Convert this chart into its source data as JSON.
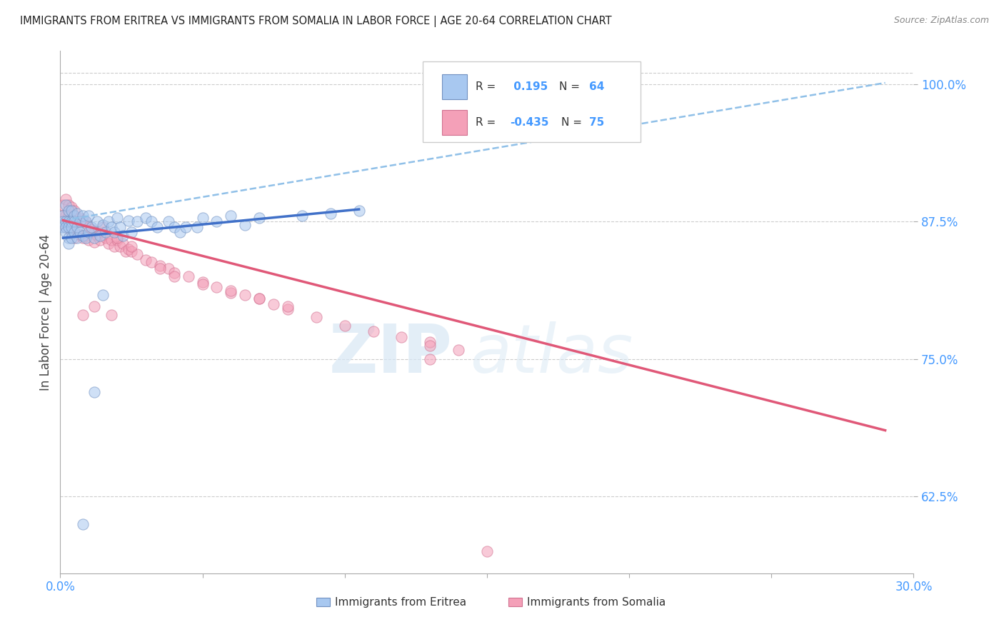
{
  "title": "IMMIGRANTS FROM ERITREA VS IMMIGRANTS FROM SOMALIA IN LABOR FORCE | AGE 20-64 CORRELATION CHART",
  "source": "Source: ZipAtlas.com",
  "ylabel": "In Labor Force | Age 20-64",
  "xlim": [
    0.0,
    0.3
  ],
  "ylim": [
    0.555,
    1.03
  ],
  "ytick_positions": [
    0.625,
    0.75,
    0.875,
    1.0
  ],
  "ytick_labels": [
    "62.5%",
    "75.0%",
    "87.5%",
    "100.0%"
  ],
  "eritrea_color": "#A8C8F0",
  "somalia_color": "#F4A0B8",
  "eritrea_edge": "#7090C0",
  "somalia_edge": "#D07090",
  "trend_eritrea_color": "#4070C8",
  "trend_somalia_color": "#E05878",
  "dashed_line_color": "#90C0E8",
  "R_eritrea": 0.195,
  "N_eritrea": 64,
  "R_somalia": -0.435,
  "N_somalia": 75,
  "legend_label_eritrea": "Immigrants from Eritrea",
  "legend_label_somalia": "Immigrants from Somalia",
  "watermark_zip": "ZIP",
  "watermark_atlas": "atlas",
  "axis_color": "#4499FF",
  "background_color": "#FFFFFF",
  "grid_color": "#CCCCCC",
  "scatter_alpha": 0.55,
  "scatter_size": 120,
  "eritrea_x": [
    0.001,
    0.001,
    0.001,
    0.002,
    0.002,
    0.002,
    0.002,
    0.003,
    0.003,
    0.003,
    0.003,
    0.003,
    0.004,
    0.004,
    0.004,
    0.004,
    0.005,
    0.005,
    0.005,
    0.006,
    0.006,
    0.006,
    0.007,
    0.007,
    0.008,
    0.008,
    0.009,
    0.009,
    0.01,
    0.01,
    0.011,
    0.012,
    0.013,
    0.014,
    0.015,
    0.016,
    0.017,
    0.018,
    0.019,
    0.02,
    0.021,
    0.022,
    0.024,
    0.025,
    0.027,
    0.03,
    0.032,
    0.034,
    0.038,
    0.04,
    0.042,
    0.044,
    0.048,
    0.05,
    0.055,
    0.06,
    0.065,
    0.07,
    0.085,
    0.095,
    0.105,
    0.012,
    0.015,
    0.008
  ],
  "eritrea_y": [
    0.88,
    0.875,
    0.87,
    0.89,
    0.875,
    0.87,
    0.865,
    0.885,
    0.875,
    0.87,
    0.86,
    0.855,
    0.885,
    0.875,
    0.87,
    0.86,
    0.88,
    0.875,
    0.865,
    0.882,
    0.87,
    0.86,
    0.875,
    0.865,
    0.88,
    0.862,
    0.875,
    0.86,
    0.88,
    0.865,
    0.87,
    0.86,
    0.875,
    0.862,
    0.872,
    0.865,
    0.875,
    0.87,
    0.865,
    0.878,
    0.87,
    0.862,
    0.876,
    0.865,
    0.875,
    0.878,
    0.875,
    0.87,
    0.875,
    0.87,
    0.865,
    0.87,
    0.87,
    0.878,
    0.875,
    0.88,
    0.872,
    0.878,
    0.88,
    0.882,
    0.885,
    0.72,
    0.808,
    0.6
  ],
  "somalia_x": [
    0.001,
    0.001,
    0.002,
    0.002,
    0.002,
    0.003,
    0.003,
    0.003,
    0.004,
    0.004,
    0.004,
    0.005,
    0.005,
    0.005,
    0.006,
    0.006,
    0.007,
    0.007,
    0.008,
    0.008,
    0.009,
    0.009,
    0.01,
    0.01,
    0.011,
    0.012,
    0.012,
    0.013,
    0.014,
    0.015,
    0.016,
    0.017,
    0.018,
    0.019,
    0.02,
    0.021,
    0.022,
    0.023,
    0.024,
    0.025,
    0.027,
    0.03,
    0.032,
    0.035,
    0.038,
    0.04,
    0.045,
    0.05,
    0.055,
    0.06,
    0.065,
    0.07,
    0.075,
    0.08,
    0.09,
    0.1,
    0.11,
    0.12,
    0.13,
    0.14,
    0.015,
    0.02,
    0.025,
    0.035,
    0.04,
    0.05,
    0.06,
    0.07,
    0.08,
    0.13,
    0.008,
    0.012,
    0.018,
    0.13,
    0.15
  ],
  "somalia_y": [
    0.89,
    0.88,
    0.895,
    0.88,
    0.87,
    0.89,
    0.88,
    0.87,
    0.888,
    0.875,
    0.865,
    0.885,
    0.875,
    0.86,
    0.878,
    0.865,
    0.878,
    0.863,
    0.875,
    0.86,
    0.875,
    0.862,
    0.87,
    0.858,
    0.868,
    0.865,
    0.856,
    0.862,
    0.858,
    0.865,
    0.86,
    0.855,
    0.858,
    0.852,
    0.858,
    0.852,
    0.855,
    0.848,
    0.85,
    0.848,
    0.845,
    0.84,
    0.838,
    0.835,
    0.832,
    0.828,
    0.825,
    0.82,
    0.815,
    0.81,
    0.808,
    0.805,
    0.8,
    0.795,
    0.788,
    0.78,
    0.775,
    0.77,
    0.765,
    0.758,
    0.87,
    0.86,
    0.852,
    0.832,
    0.825,
    0.818,
    0.812,
    0.805,
    0.798,
    0.75,
    0.79,
    0.798,
    0.79,
    0.762,
    0.575
  ],
  "eritrea_trend_x": [
    0.001,
    0.105
  ],
  "eritrea_trend_y": [
    0.86,
    0.886
  ],
  "somalia_trend_x": [
    0.001,
    0.29
  ],
  "somalia_trend_y": [
    0.876,
    0.685
  ],
  "dashed_trend_x": [
    0.001,
    0.29
  ],
  "dashed_trend_y": [
    0.876,
    1.001
  ]
}
